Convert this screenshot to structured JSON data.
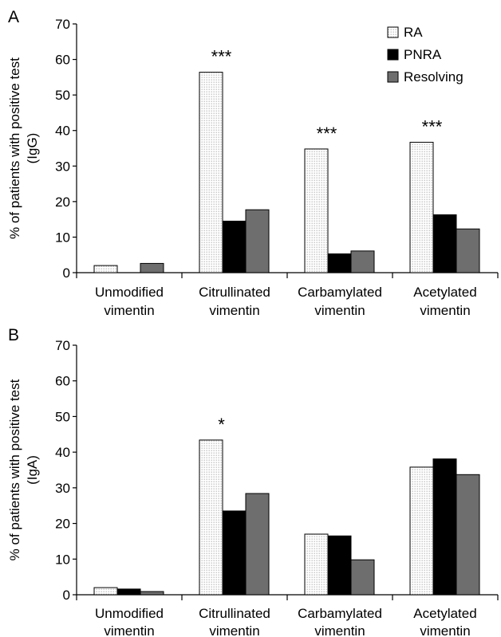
{
  "chart_data": [
    {
      "type": "bar",
      "panel_label": "A",
      "ylabel": "% of patients with positive test (IgG)",
      "ylabel_lines": [
        "% of patients with positive test",
        "(IgG)"
      ],
      "ylim": [
        0,
        70
      ],
      "yticks": [
        0,
        10,
        20,
        30,
        40,
        50,
        60,
        70
      ],
      "categories": [
        "Unmodified vimentin",
        "Citrullinated vimentin",
        "Carbamylated vimentin",
        "Acetylated vimentin"
      ],
      "category_lines": [
        [
          "Unmodified",
          "vimentin"
        ],
        [
          "Citrullinated",
          "vimentin"
        ],
        [
          "Carbamylated",
          "vimentin"
        ],
        [
          "Acetylated",
          "vimentin"
        ]
      ],
      "series": [
        {
          "name": "RA",
          "values": [
            2,
            56.4,
            34.8,
            36.7
          ]
        },
        {
          "name": "PNRA",
          "values": [
            0,
            14.5,
            5.3,
            16.3
          ]
        },
        {
          "name": "Resolving",
          "values": [
            2.6,
            17.7,
            6.1,
            12.3
          ]
        }
      ],
      "annotations": [
        "",
        "***",
        "***",
        "***"
      ],
      "legend": {
        "position": "top-right",
        "entries": [
          "RA",
          "PNRA",
          "Resolving"
        ]
      },
      "grid": false
    },
    {
      "type": "bar",
      "panel_label": "B",
      "ylabel": "% of patients with positive test (IgA)",
      "ylabel_lines": [
        "% of patients with positive test",
        "(IgA)"
      ],
      "ylim": [
        0,
        70
      ],
      "yticks": [
        0,
        10,
        20,
        30,
        40,
        50,
        60,
        70
      ],
      "categories": [
        "Unmodified vimentin",
        "Citrullinated vimentin",
        "Carbamylated vimentin",
        "Acetylated vimentin"
      ],
      "category_lines": [
        [
          "Unmodified",
          "vimentin"
        ],
        [
          "Citrullinated",
          "vimentin"
        ],
        [
          "Carbamylated",
          "vimentin"
        ],
        [
          "Acetylated",
          "vimentin"
        ]
      ],
      "series": [
        {
          "name": "RA",
          "values": [
            2,
            43.4,
            17,
            35.8
          ]
        },
        {
          "name": "PNRA",
          "values": [
            1.6,
            23.5,
            16.5,
            38.1
          ]
        },
        {
          "name": "Resolving",
          "values": [
            0.9,
            28.4,
            9.8,
            33.7
          ]
        }
      ],
      "annotations": [
        "",
        "*",
        "",
        ""
      ],
      "grid": false
    }
  ],
  "colors": {
    "RA": "#ffffff",
    "RA_dots": "#9a9a9a",
    "PNRA": "#000000",
    "Resolving": "#6e6e6e",
    "axis": "#000000"
  }
}
